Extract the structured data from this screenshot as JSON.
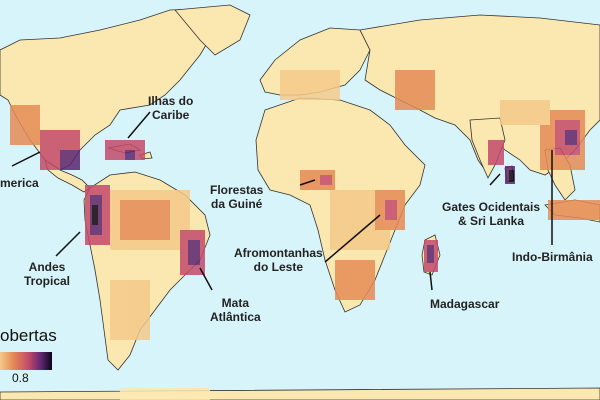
{
  "legend": {
    "title_visible": "obertas",
    "tick_label": "0.8",
    "colors": [
      "#fbe9b4",
      "#f4c98a",
      "#e58b55",
      "#c24a6b",
      "#5b2570",
      "#0b0514"
    ]
  },
  "ocean_color": "#d8f4fb",
  "land_color": "#fbe7b0",
  "regions": [
    {
      "name": "Ilhas do Caribe",
      "lines": [
        "Ilhas do",
        "Caribe"
      ]
    },
    {
      "name": "America (truncated)",
      "lines": [
        "merica"
      ]
    },
    {
      "name": "Andes Tropical",
      "lines": [
        "Andes",
        "Tropical"
      ]
    },
    {
      "name": "Florestas da Guiné",
      "lines": [
        "Florestas",
        "da Guiné"
      ]
    },
    {
      "name": "Afromontanhas do Leste",
      "lines": [
        "Afromontanhas",
        "do Leste"
      ]
    },
    {
      "name": "Mata Atlântica",
      "lines": [
        "Mata",
        "Atlântica"
      ]
    },
    {
      "name": "Madagascar",
      "lines": [
        "Madagascar"
      ]
    },
    {
      "name": "Gates Ocidentais & Sri Lanka",
      "lines": [
        "Gates Ocidentais",
        "& Sri Lanka"
      ]
    },
    {
      "name": "Indo-Birmânia",
      "lines": [
        "Indo-Birmânia"
      ]
    }
  ]
}
